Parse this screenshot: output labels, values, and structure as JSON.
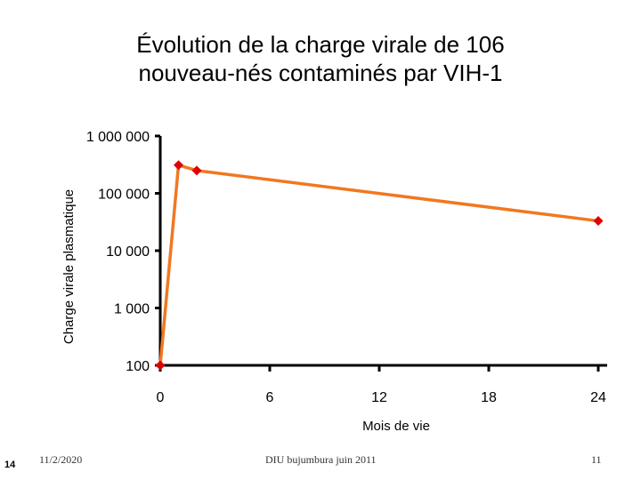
{
  "chart_data": {
    "type": "line",
    "title_line1": "Évolution de la charge virale de 106",
    "title_line2": "nouveau-nés contaminés par VIH-1",
    "xlabel": "Mois de vie",
    "ylabel": "Charge virale plasmatique",
    "y_scale": "log",
    "ylim": [
      100,
      1000000
    ],
    "xlim": [
      0,
      24
    ],
    "y_ticks": [
      {
        "value": 100,
        "label": "100"
      },
      {
        "value": 1000,
        "label": "1 000"
      },
      {
        "value": 10000,
        "label": "10 000"
      },
      {
        "value": 100000,
        "label": "100 000"
      },
      {
        "value": 1000000,
        "label": "1 000 000"
      }
    ],
    "x_ticks": [
      {
        "value": 0,
        "label": "0"
      },
      {
        "value": 6,
        "label": "6"
      },
      {
        "value": 12,
        "label": "12"
      },
      {
        "value": 18,
        "label": "18"
      },
      {
        "value": 24,
        "label": "24"
      }
    ],
    "series": [
      {
        "color": "#f07820",
        "marker_color": "#e00000",
        "points": [
          {
            "x": 0,
            "y": 100
          },
          {
            "x": 1,
            "y": 310000
          },
          {
            "x": 2,
            "y": 250000
          },
          {
            "x": 24,
            "y": 33000
          }
        ]
      }
    ],
    "grid": false
  },
  "footer": {
    "date": "11/2/2020",
    "center": "DIU bujumbura juin 2011",
    "page": "11",
    "slide_number": "14"
  }
}
